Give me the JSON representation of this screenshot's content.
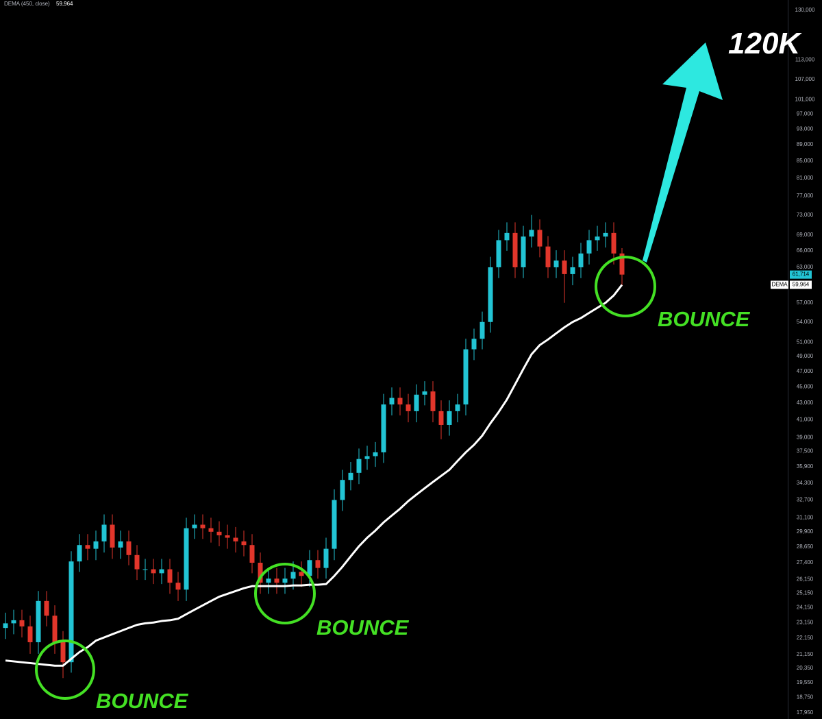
{
  "chart_data": {
    "type": "candlestick",
    "log_scale": true,
    "ylim": [
      17640,
      133800
    ],
    "yticks": [
      {
        "value": 130000,
        "label": "130,000"
      },
      {
        "value": 113000,
        "label": "113,000"
      },
      {
        "value": 107000,
        "label": "107,000"
      },
      {
        "value": 101000,
        "label": "101,000"
      },
      {
        "value": 97000,
        "label": "97,000"
      },
      {
        "value": 93000,
        "label": "93,000"
      },
      {
        "value": 89000,
        "label": "89,000"
      },
      {
        "value": 85000,
        "label": "85,000"
      },
      {
        "value": 81000,
        "label": "81,000"
      },
      {
        "value": 77000,
        "label": "77,000"
      },
      {
        "value": 73000,
        "label": "73,000"
      },
      {
        "value": 69000,
        "label": "69,000"
      },
      {
        "value": 66000,
        "label": "66,000"
      },
      {
        "value": 63000,
        "label": "63,000"
      },
      {
        "value": 57000,
        "label": "57,000"
      },
      {
        "value": 54000,
        "label": "54,000"
      },
      {
        "value": 51000,
        "label": "51,000"
      },
      {
        "value": 49000,
        "label": "49,000"
      },
      {
        "value": 47000,
        "label": "47,000"
      },
      {
        "value": 45000,
        "label": "45,000"
      },
      {
        "value": 43000,
        "label": "43,000"
      },
      {
        "value": 41000,
        "label": "41,000"
      },
      {
        "value": 39000,
        "label": "39,000"
      },
      {
        "value": 37500,
        "label": "37,500"
      },
      {
        "value": 35900,
        "label": "35,900"
      },
      {
        "value": 34300,
        "label": "34,300"
      },
      {
        "value": 32700,
        "label": "32,700"
      },
      {
        "value": 31100,
        "label": "31,100"
      },
      {
        "value": 29900,
        "label": "29,900"
      },
      {
        "value": 28650,
        "label": "28,650"
      },
      {
        "value": 27400,
        "label": "27,400"
      },
      {
        "value": 26150,
        "label": "26,150"
      },
      {
        "value": 25150,
        "label": "25,150"
      },
      {
        "value": 24150,
        "label": "24,150"
      },
      {
        "value": 23150,
        "label": "23,150"
      },
      {
        "value": 22150,
        "label": "22,150"
      },
      {
        "value": 21150,
        "label": "21,150"
      },
      {
        "value": 20350,
        "label": "20,350"
      },
      {
        "value": 19550,
        "label": "19,550"
      },
      {
        "value": 18750,
        "label": "18,750"
      },
      {
        "value": 17950,
        "label": "17,950"
      }
    ],
    "candles": {
      "up_color": "#22c4d4",
      "down_color": "#e2362b",
      "last_label": "61,714",
      "open": [
        22800,
        23100,
        23300,
        22900,
        21900,
        24600,
        23600,
        21900,
        20700,
        27500,
        28800,
        28500,
        29100,
        30500,
        28600,
        29100,
        28000,
        26900,
        26900,
        26600,
        26900,
        25900,
        25400,
        30200,
        30500,
        30200,
        29900,
        29600,
        29400,
        29100,
        28800,
        27400,
        25900,
        26200,
        25900,
        26200,
        26700,
        26400,
        27600,
        27000,
        28500,
        32700,
        34600,
        35300,
        36700,
        37000,
        37400,
        42800,
        43600,
        42800,
        42000,
        44000,
        44400,
        42000,
        40400,
        42000,
        42800,
        50000,
        51500,
        54000,
        63000,
        68000,
        69400,
        63000,
        68700,
        70000,
        66800,
        63000,
        64200,
        61800,
        63000,
        65500,
        68000,
        68700,
        69400,
        65500
      ],
      "high": [
        23800,
        24000,
        24000,
        23600,
        25300,
        25300,
        24300,
        22600,
        28300,
        29700,
        29700,
        30000,
        31400,
        31400,
        30000,
        30000,
        28800,
        27700,
        27700,
        27700,
        27700,
        26700,
        31100,
        31400,
        31400,
        31100,
        30800,
        30500,
        30300,
        30000,
        29700,
        28200,
        27000,
        27000,
        27000,
        27500,
        27500,
        28400,
        28400,
        29400,
        33700,
        35600,
        36400,
        37800,
        38100,
        38500,
        44100,
        44900,
        44900,
        44100,
        45300,
        45700,
        45700,
        43300,
        43300,
        44100,
        51500,
        53000,
        55600,
        64900,
        70000,
        71500,
        71500,
        70800,
        73000,
        72100,
        68800,
        66100,
        66100,
        64900,
        67500,
        70000,
        70800,
        71500,
        71500,
        66500
      ],
      "low": [
        22100,
        22400,
        22200,
        21200,
        21200,
        22900,
        21200,
        19800,
        20100,
        26700,
        27600,
        27600,
        28200,
        27700,
        27700,
        27200,
        26100,
        26100,
        25800,
        25800,
        25100,
        24600,
        24600,
        29300,
        29300,
        29000,
        28700,
        28500,
        28200,
        27900,
        26600,
        25100,
        25100,
        25100,
        25100,
        25400,
        25600,
        25600,
        26200,
        26200,
        27600,
        31700,
        33600,
        34200,
        35600,
        35900,
        36300,
        41500,
        41500,
        40700,
        40700,
        42700,
        40700,
        38800,
        39200,
        40700,
        41500,
        48500,
        50000,
        52400,
        61100,
        66000,
        61100,
        61100,
        66600,
        64800,
        61100,
        61100,
        57000,
        59900,
        61100,
        63500,
        66000,
        66600,
        63500,
        59800
      ],
      "close": [
        23100,
        23300,
        22900,
        21900,
        24600,
        23600,
        21900,
        20700,
        27500,
        28800,
        28500,
        29100,
        30500,
        28600,
        29100,
        28000,
        26900,
        26900,
        26600,
        26900,
        25900,
        25400,
        30200,
        30500,
        30200,
        29900,
        29600,
        29400,
        29100,
        28800,
        27400,
        25900,
        26200,
        25900,
        26200,
        26700,
        26400,
        27600,
        27000,
        28500,
        32700,
        34600,
        35300,
        36700,
        37000,
        37400,
        42800,
        43600,
        42800,
        42000,
        44000,
        44400,
        42000,
        40400,
        42000,
        42800,
        50000,
        51500,
        54000,
        63000,
        68000,
        69400,
        63000,
        68700,
        70000,
        66800,
        63000,
        64200,
        61800,
        63000,
        65500,
        68000,
        68700,
        69400,
        65500,
        61714
      ]
    },
    "dema": {
      "name": "DEMA",
      "legend_label": "DEMA (450, close)",
      "last_label": "59,964",
      "color": "#ffffff",
      "values": [
        20800,
        20750,
        20700,
        20650,
        20600,
        20550,
        20500,
        20500,
        20900,
        21300,
        21600,
        22000,
        22200,
        22400,
        22600,
        22800,
        23000,
        23100,
        23150,
        23250,
        23300,
        23400,
        23700,
        24000,
        24300,
        24600,
        24900,
        25100,
        25300,
        25500,
        25650,
        25650,
        25650,
        25650,
        25650,
        25700,
        25700,
        25750,
        25750,
        25800,
        26400,
        27100,
        27900,
        28700,
        29400,
        30000,
        30700,
        31300,
        31900,
        32600,
        33200,
        33800,
        34400,
        35000,
        35600,
        36500,
        37400,
        38200,
        39200,
        40600,
        41900,
        43400,
        45300,
        47300,
        49300,
        50600,
        51400,
        52300,
        53200,
        54000,
        54600,
        55400,
        56200,
        57000,
        58200,
        59964
      ]
    },
    "annotations": [
      {
        "text": "120K"
      },
      {
        "text": "BOUNCE"
      },
      {
        "text": "BOUNCE"
      },
      {
        "text": "BOUNCE"
      }
    ]
  }
}
